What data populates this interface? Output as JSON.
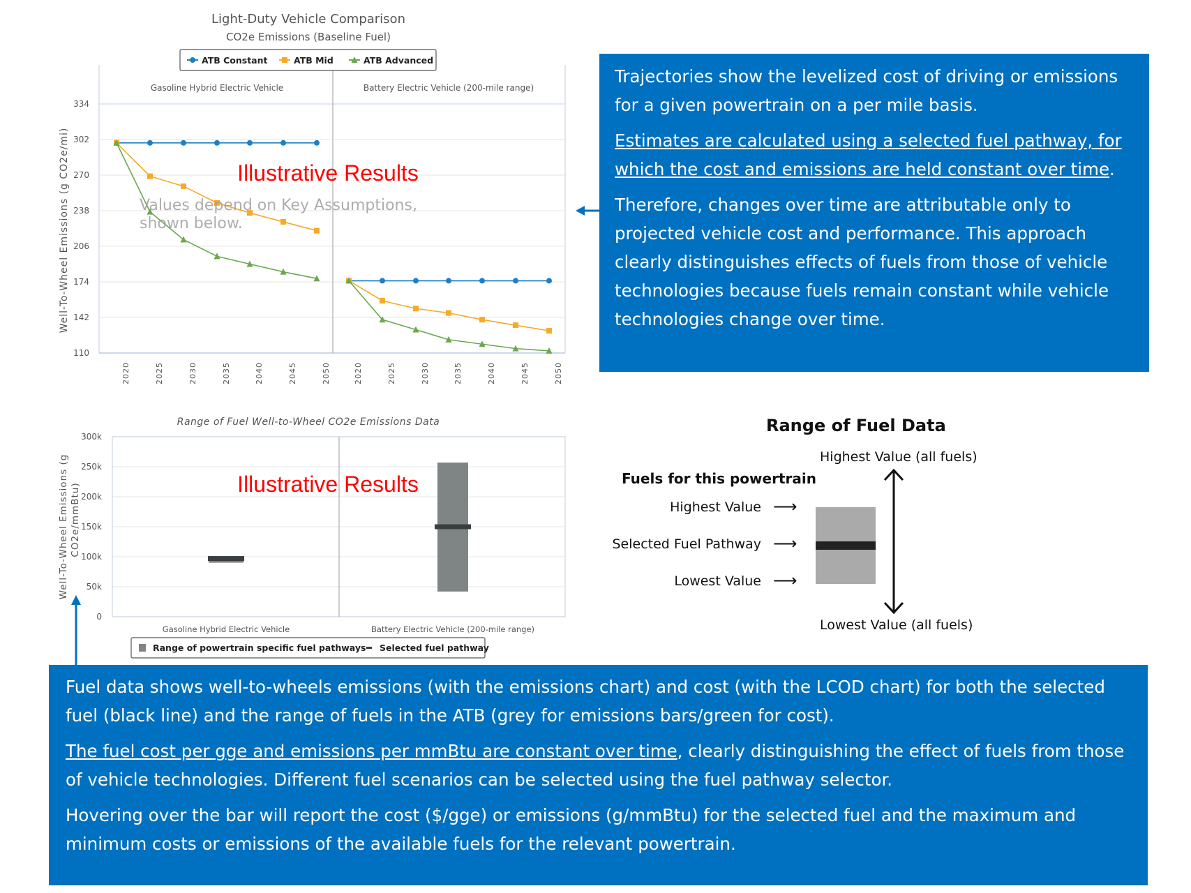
{
  "emissions_annotation": {
    "p1": "Trajectories show the levelized cost of driving or emissions for a given powertrain on a per mile basis.",
    "p2_underlined": "Estimates are calculated using a selected fuel pathway, for which the cost and emissions are held constant over time",
    "p2_tail": ".",
    "p3": "Therefore, changes over time are attributable only to projected vehicle cost and performance. This approach clearly distinguishes effects of fuels from those of vehicle technologies because fuels remain constant while vehicle technologies change over time."
  },
  "fuel_annotation": {
    "p1": "Fuel data shows well-to-wheels emissions (with the emissions chart) and cost (with the LCOD chart) for both the selected fuel (black line) and the range of fuels in the ATB (grey for emissions bars/green for cost).",
    "p2_underlined": "The fuel cost per gge and emissions per mmBtu are constant over time",
    "p2_tail": ", clearly distinguishing the effect of fuels from those of vehicle technologies. Different fuel scenarios can be selected using the fuel pathway selector.",
    "p3": "Hovering over the bar will report the cost ($/gge) or emissions (g/mmBtu) for the selected fuel and the maximum and minimum costs or emissions of the available fuels for the relevant powertrain."
  },
  "legend_diagram": {
    "title": "Range of Fuel Data",
    "highest_all": "Highest Value (all fuels)",
    "lowest_all": "Lowest Value (all fuels)",
    "subtitle": "Fuels for this powertrain",
    "highest": "Highest Value",
    "selected": "Selected Fuel Pathway",
    "lowest": "Lowest Value",
    "arrow": "⟶"
  },
  "accent_color": "#0070c0",
  "chart_data": [
    {
      "type": "line",
      "title": "Light-Duty Vehicle Comparison",
      "subtitle": "CO2e Emissions (Baseline Fuel)",
      "ylabel": "Well-To-Wheel Emissions (g CO2e/mi)",
      "ylim": [
        110,
        334
      ],
      "yticks": [
        110,
        142,
        174,
        206,
        238,
        270,
        302,
        334
      ],
      "x": [
        "2020",
        "2025",
        "2030",
        "2035",
        "2040",
        "2045",
        "2050"
      ],
      "legend_placement": "top",
      "grid": true,
      "watermark": "Illustrative Results",
      "note": "Values depend on Key Assumptions, shown below.",
      "panels": [
        {
          "name": "Gasoline Hybrid Electric Vehicle",
          "series": [
            {
              "name": "ATB Constant",
              "color": "#1f7fc6",
              "marker": "circle",
              "values": [
                299,
                299,
                299,
                299,
                299,
                299,
                299
              ]
            },
            {
              "name": "ATB Mid",
              "color": "#f7a928",
              "marker": "square",
              "values": [
                299,
                269,
                260,
                245,
                236,
                228,
                220
              ]
            },
            {
              "name": "ATB Advanced",
              "color": "#6aa84f",
              "marker": "triangle",
              "values": [
                299,
                237,
                212,
                197,
                190,
                183,
                177
              ]
            }
          ]
        },
        {
          "name": "Battery Electric Vehicle (200-mile range)",
          "series": [
            {
              "name": "ATB Constant",
              "color": "#1f7fc6",
              "marker": "circle",
              "values": [
                175,
                175,
                175,
                175,
                175,
                175,
                175
              ]
            },
            {
              "name": "ATB Mid",
              "color": "#f7a928",
              "marker": "square",
              "values": [
                175,
                157,
                150,
                146,
                140,
                135,
                130
              ]
            },
            {
              "name": "ATB Advanced",
              "color": "#6aa84f",
              "marker": "triangle",
              "values": [
                175,
                140,
                131,
                122,
                118,
                114,
                112
              ]
            }
          ]
        }
      ]
    },
    {
      "type": "bar",
      "title": "Range of Fuel Well-to-Wheel CO2e Emissions Data",
      "ylabel": "Well-To-Wheel Emissions (g CO2e/mmBtu)",
      "ylim": [
        0,
        300000
      ],
      "yticks": [
        0,
        50000,
        100000,
        150000,
        200000,
        250000,
        300000
      ],
      "ytick_labels": [
        "0",
        "50k",
        "100k",
        "150k",
        "200k",
        "250k",
        "300k"
      ],
      "categories": [
        "Gasoline Hybrid Electric Vehicle",
        "Battery Electric Vehicle (200-mile range)"
      ],
      "range_min": [
        90000,
        42000
      ],
      "range_max": [
        100000,
        257000
      ],
      "selected": [
        97000,
        150000
      ],
      "legend": [
        "Range of powertrain specific fuel pathways",
        "Selected fuel pathway"
      ],
      "legend_placement": "bottom",
      "grid": true,
      "watermark": "Illustrative Results",
      "colors": {
        "range": "#7f8584",
        "selected": "#3a3d42"
      }
    }
  ]
}
